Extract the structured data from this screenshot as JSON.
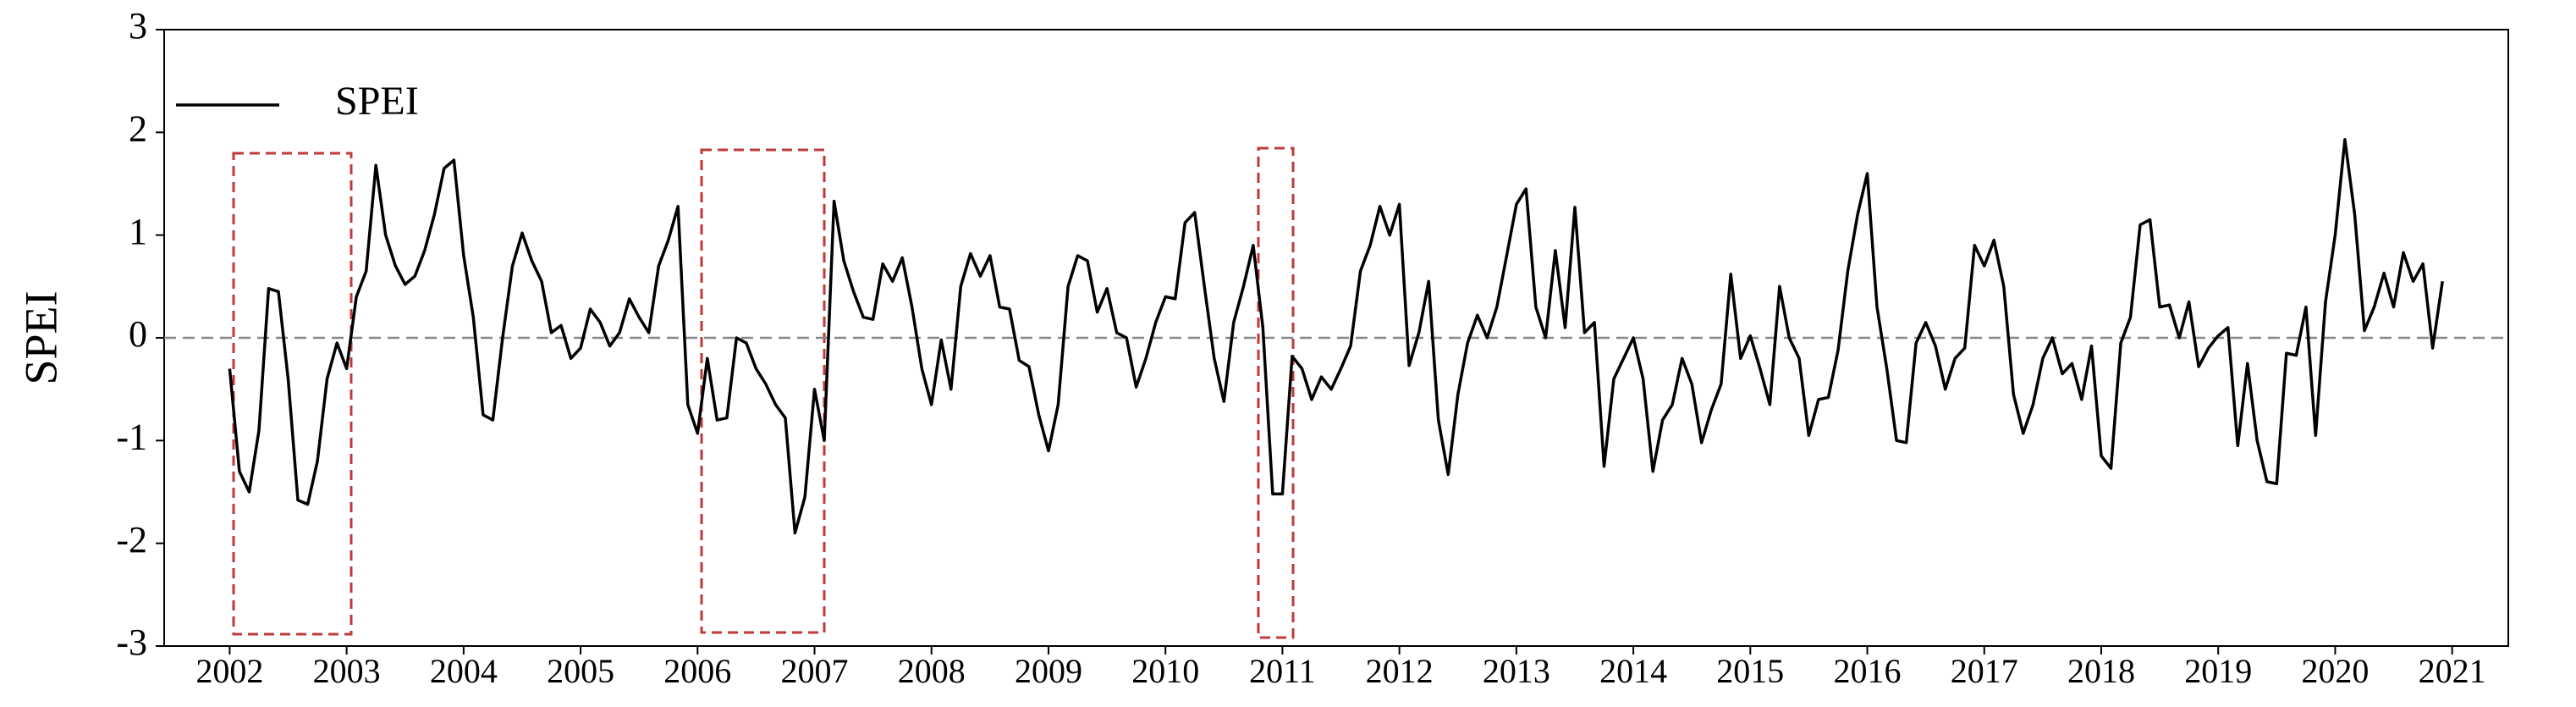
{
  "chart_data": {
    "type": "line",
    "ylabel": "SPEI",
    "legend": "upper left",
    "xlim": [
      2001.44,
      2021.48
    ],
    "ylim": [
      -3,
      3
    ],
    "xticks": [
      2002,
      2003,
      2004,
      2005,
      2006,
      2007,
      2008,
      2009,
      2010,
      2011,
      2012,
      2013,
      2014,
      2015,
      2016,
      2017,
      2018,
      2019,
      2020,
      2021
    ],
    "yticks": [
      -3,
      -2,
      -1,
      0,
      1,
      2,
      3
    ],
    "x": [
      2002,
      2002.083,
      2002.167,
      2002.25,
      2002.333,
      2002.417,
      2002.5,
      2002.583,
      2002.667,
      2002.75,
      2002.833,
      2002.917,
      2003,
      2003.083,
      2003.167,
      2003.25,
      2003.333,
      2003.417,
      2003.5,
      2003.583,
      2003.667,
      2003.75,
      2003.833,
      2003.917,
      2004,
      2004.083,
      2004.167,
      2004.25,
      2004.333,
      2004.417,
      2004.5,
      2004.583,
      2004.667,
      2004.75,
      2004.833,
      2004.917,
      2005,
      2005.083,
      2005.167,
      2005.25,
      2005.333,
      2005.417,
      2005.5,
      2005.583,
      2005.667,
      2005.75,
      2005.833,
      2005.917,
      2006,
      2006.083,
      2006.167,
      2006.25,
      2006.333,
      2006.417,
      2006.5,
      2006.583,
      2006.667,
      2006.75,
      2006.833,
      2006.917,
      2007,
      2007.083,
      2007.167,
      2007.25,
      2007.333,
      2007.417,
      2007.5,
      2007.583,
      2007.667,
      2007.75,
      2007.833,
      2007.917,
      2008,
      2008.083,
      2008.167,
      2008.25,
      2008.333,
      2008.417,
      2008.5,
      2008.583,
      2008.667,
      2008.75,
      2008.833,
      2008.917,
      2009,
      2009.083,
      2009.167,
      2009.25,
      2009.333,
      2009.417,
      2009.5,
      2009.583,
      2009.667,
      2009.75,
      2009.833,
      2009.917,
      2010,
      2010.083,
      2010.167,
      2010.25,
      2010.333,
      2010.417,
      2010.5,
      2010.583,
      2010.667,
      2010.75,
      2010.833,
      2010.917,
      2011,
      2011.083,
      2011.167,
      2011.25,
      2011.333,
      2011.417,
      2011.5,
      2011.583,
      2011.667,
      2011.75,
      2011.833,
      2011.917,
      2012,
      2012.083,
      2012.167,
      2012.25,
      2012.333,
      2012.417,
      2012.5,
      2012.583,
      2012.667,
      2012.75,
      2012.833,
      2012.917,
      2013,
      2013.083,
      2013.167,
      2013.25,
      2013.333,
      2013.417,
      2013.5,
      2013.583,
      2013.667,
      2013.75,
      2013.833,
      2013.917,
      2014,
      2014.083,
      2014.167,
      2014.25,
      2014.333,
      2014.417,
      2014.5,
      2014.583,
      2014.667,
      2014.75,
      2014.833,
      2014.917,
      2015,
      2015.083,
      2015.167,
      2015.25,
      2015.333,
      2015.417,
      2015.5,
      2015.583,
      2015.667,
      2015.75,
      2015.833,
      2015.917,
      2016,
      2016.083,
      2016.167,
      2016.25,
      2016.333,
      2016.417,
      2016.5,
      2016.583,
      2016.667,
      2016.75,
      2016.833,
      2016.917,
      2017,
      2017.083,
      2017.167,
      2017.25,
      2017.333,
      2017.417,
      2017.5,
      2017.583,
      2017.667,
      2017.75,
      2017.833,
      2017.917,
      2018,
      2018.083,
      2018.167,
      2018.25,
      2018.333,
      2018.417,
      2018.5,
      2018.583,
      2018.667,
      2018.75,
      2018.833,
      2018.917,
      2019,
      2019.083,
      2019.167,
      2019.25,
      2019.333,
      2019.417,
      2019.5,
      2019.583,
      2019.667,
      2019.75,
      2019.833,
      2019.917,
      2020,
      2020.083,
      2020.167,
      2020.25,
      2020.333,
      2020.417,
      2020.5,
      2020.583,
      2020.667,
      2020.75,
      2020.833,
      2020.917
    ],
    "series": [
      {
        "name": "SPEI",
        "color": "#000000",
        "values": [
          -0.3,
          -1.3,
          -1.5,
          -0.9,
          0.48,
          0.45,
          -0.4,
          -1.58,
          -1.62,
          -1.2,
          -0.4,
          -0.05,
          -0.3,
          0.4,
          0.65,
          1.68,
          1.0,
          0.7,
          0.52,
          0.6,
          0.85,
          1.2,
          1.65,
          1.73,
          0.8,
          0.2,
          -0.75,
          -0.8,
          0.0,
          0.7,
          1.02,
          0.75,
          0.55,
          0.05,
          0.12,
          -0.2,
          -0.1,
          0.28,
          0.15,
          -0.08,
          0.05,
          0.38,
          0.2,
          0.05,
          0.7,
          0.95,
          1.28,
          -0.65,
          -0.93,
          -0.2,
          -0.8,
          -0.78,
          0.0,
          -0.05,
          -0.3,
          -0.45,
          -0.65,
          -0.78,
          -1.9,
          -1.55,
          -0.5,
          -1.0,
          1.33,
          0.75,
          0.45,
          0.2,
          0.18,
          0.72,
          0.55,
          0.78,
          0.3,
          -0.3,
          -0.65,
          -0.02,
          -0.5,
          0.5,
          0.82,
          0.6,
          0.8,
          0.3,
          0.28,
          -0.22,
          -0.28,
          -0.75,
          -1.1,
          -0.65,
          0.5,
          0.8,
          0.75,
          0.25,
          0.48,
          0.05,
          0.0,
          -0.48,
          -0.2,
          0.15,
          0.4,
          0.38,
          1.12,
          1.22,
          0.5,
          -0.2,
          -0.62,
          0.15,
          0.5,
          0.9,
          0.1,
          -1.52,
          -1.52,
          -0.18,
          -0.3,
          -0.6,
          -0.38,
          -0.5,
          -0.3,
          -0.08,
          0.65,
          0.9,
          1.28,
          1.0,
          1.3,
          -0.27,
          0.05,
          0.55,
          -0.8,
          -1.33,
          -0.55,
          -0.05,
          0.22,
          0.0,
          0.3,
          0.8,
          1.3,
          1.45,
          0.3,
          0.0,
          0.85,
          0.1,
          1.27,
          0.05,
          0.15,
          -1.25,
          -0.4,
          -0.2,
          0.0,
          -0.4,
          -1.3,
          -0.8,
          -0.65,
          -0.2,
          -0.45,
          -1.02,
          -0.7,
          -0.45,
          0.62,
          -0.2,
          0.02,
          -0.3,
          -0.65,
          0.5,
          0.0,
          -0.2,
          -0.95,
          -0.6,
          -0.58,
          -0.12,
          0.65,
          1.2,
          1.6,
          0.3,
          -0.3,
          -1.0,
          -1.02,
          -0.05,
          0.15,
          -0.08,
          -0.5,
          -0.2,
          -0.1,
          0.9,
          0.7,
          0.95,
          0.5,
          -0.55,
          -0.93,
          -0.65,
          -0.2,
          0.0,
          -0.35,
          -0.25,
          -0.6,
          -0.08,
          -1.15,
          -1.27,
          -0.05,
          0.2,
          1.1,
          1.15,
          0.3,
          0.32,
          0.0,
          0.35,
          -0.28,
          -0.1,
          0.02,
          0.1,
          -1.05,
          -0.25,
          -1.0,
          -1.4,
          -1.42,
          -0.15,
          -0.17,
          0.3,
          -0.95,
          0.35,
          1.0,
          1.93,
          1.2,
          0.07,
          0.3,
          0.63,
          0.3,
          0.83,
          0.55,
          0.72,
          -0.1,
          0.55
        ]
      }
    ]
  }
}
